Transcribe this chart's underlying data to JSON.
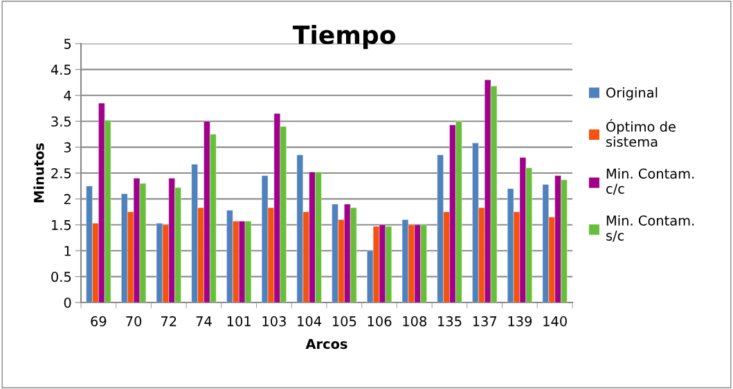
{
  "chart_data": {
    "type": "bar",
    "title": "Tiempo",
    "xlabel": "Arcos",
    "ylabel": "Minutos",
    "categories": [
      "69",
      "70",
      "72",
      "74",
      "101",
      "103",
      "104",
      "105",
      "106",
      "108",
      "135",
      "137",
      "139",
      "140"
    ],
    "series": [
      {
        "name": "Original",
        "color": "#4f81bd",
        "values": [
          2.25,
          2.1,
          1.53,
          2.67,
          1.78,
          2.45,
          2.85,
          1.9,
          1.0,
          1.6,
          2.85,
          3.08,
          2.2,
          2.28
        ]
      },
      {
        "name": "Óptimo de sistema",
        "color": "#f4520f",
        "values": [
          1.53,
          1.75,
          1.5,
          1.83,
          1.57,
          1.83,
          1.75,
          1.6,
          1.47,
          1.5,
          1.75,
          1.83,
          1.75,
          1.65
        ]
      },
      {
        "name": "Min. Contam. c/c",
        "color": "#a0008a",
        "values": [
          3.85,
          2.4,
          2.4,
          3.5,
          1.57,
          3.65,
          2.52,
          1.9,
          1.5,
          1.5,
          3.43,
          4.3,
          2.8,
          2.45
        ]
      },
      {
        "name": "Min. Contam. s/c",
        "color": "#66bf38",
        "values": [
          3.52,
          2.3,
          2.22,
          3.25,
          1.57,
          3.4,
          2.52,
          1.83,
          1.47,
          1.5,
          3.5,
          4.18,
          2.6,
          2.37
        ]
      }
    ],
    "ylim": [
      0,
      5
    ],
    "yticks": [
      0,
      0.5,
      1,
      1.5,
      2,
      2.5,
      3,
      3.5,
      4,
      4.5,
      5
    ],
    "grid": "y",
    "legend": "right"
  }
}
